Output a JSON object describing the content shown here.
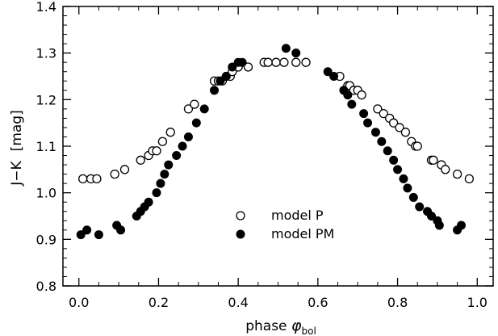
{
  "chart_data": {
    "type": "scatter",
    "title": "",
    "xlabel": "phase",
    "xlabel_symbol": "φ",
    "xlabel_subscript": "bol",
    "ylabel": "J−K",
    "yunit": "[mag]",
    "xlim": [
      -0.04,
      1.04
    ],
    "ylim": [
      0.8,
      1.4
    ],
    "xticks": [
      "0.0",
      "0.2",
      "0.4",
      "0.6",
      "0.8",
      "1.0"
    ],
    "yticks": [
      "0.8",
      "0.9",
      "1.0",
      "1.1",
      "1.2",
      "1.3",
      "1.4"
    ],
    "grid": false,
    "legend_position": "center",
    "series": [
      {
        "name": "model P",
        "marker": "open-circle",
        "x": [
          0.01,
          0.03,
          0.045,
          0.09,
          0.115,
          0.155,
          0.175,
          0.185,
          0.195,
          0.21,
          0.23,
          0.275,
          0.29,
          0.34,
          0.35,
          0.36,
          0.37,
          0.38,
          0.385,
          0.4,
          0.425,
          0.465,
          0.475,
          0.495,
          0.515,
          0.545,
          0.57,
          0.655,
          0.675,
          0.68,
          0.69,
          0.7,
          0.71,
          0.75,
          0.765,
          0.78,
          0.79,
          0.805,
          0.82,
          0.835,
          0.845,
          0.85,
          0.885,
          0.89,
          0.91,
          0.92,
          0.95,
          0.98
        ],
        "y": [
          1.03,
          1.03,
          1.03,
          1.04,
          1.05,
          1.07,
          1.08,
          1.09,
          1.09,
          1.11,
          1.13,
          1.18,
          1.19,
          1.24,
          1.24,
          1.24,
          1.25,
          1.25,
          1.26,
          1.27,
          1.27,
          1.28,
          1.28,
          1.28,
          1.28,
          1.28,
          1.28,
          1.25,
          1.23,
          1.23,
          1.22,
          1.22,
          1.21,
          1.18,
          1.17,
          1.16,
          1.15,
          1.14,
          1.13,
          1.11,
          1.1,
          1.1,
          1.07,
          1.07,
          1.06,
          1.05,
          1.04,
          1.03
        ]
      },
      {
        "name": "model PM",
        "marker": "filled-circle",
        "x": [
          0.005,
          0.02,
          0.05,
          0.095,
          0.105,
          0.145,
          0.155,
          0.165,
          0.175,
          0.195,
          0.205,
          0.215,
          0.225,
          0.245,
          0.26,
          0.275,
          0.295,
          0.315,
          0.34,
          0.355,
          0.37,
          0.385,
          0.4,
          0.41,
          0.52,
          0.545,
          0.625,
          0.64,
          0.665,
          0.675,
          0.685,
          0.715,
          0.725,
          0.745,
          0.76,
          0.775,
          0.79,
          0.8,
          0.815,
          0.825,
          0.84,
          0.855,
          0.875,
          0.885,
          0.9,
          0.905,
          0.95,
          0.96
        ],
        "y": [
          0.91,
          0.92,
          0.91,
          0.93,
          0.92,
          0.95,
          0.96,
          0.97,
          0.98,
          1.0,
          1.02,
          1.04,
          1.06,
          1.08,
          1.1,
          1.12,
          1.15,
          1.18,
          1.22,
          1.24,
          1.25,
          1.27,
          1.28,
          1.28,
          1.31,
          1.3,
          1.26,
          1.25,
          1.22,
          1.21,
          1.19,
          1.17,
          1.15,
          1.13,
          1.11,
          1.09,
          1.07,
          1.05,
          1.03,
          1.01,
          0.99,
          0.97,
          0.96,
          0.95,
          0.94,
          0.93,
          0.92,
          0.93
        ]
      }
    ]
  }
}
